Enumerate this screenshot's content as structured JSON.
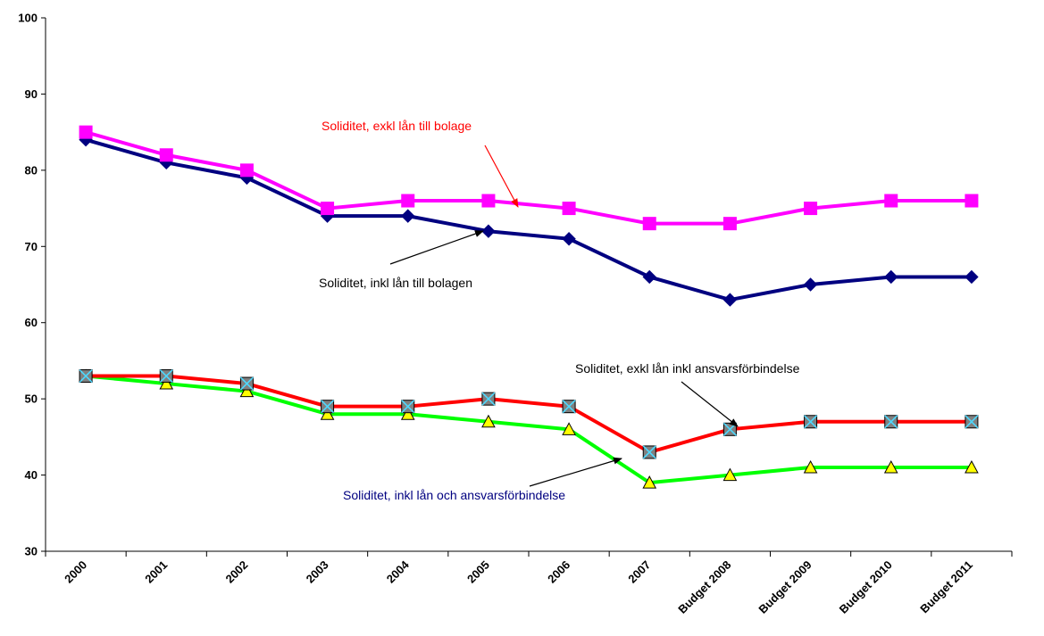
{
  "chart_data": {
    "type": "line",
    "title": "",
    "xlabel": "",
    "ylabel": "",
    "ylim": [
      30,
      100
    ],
    "yticks": [
      30,
      40,
      50,
      60,
      70,
      80,
      90,
      100
    ],
    "grid": false,
    "legend": "none",
    "categories": [
      "2000",
      "2001",
      "2002",
      "2003",
      "2004",
      "2005",
      "2006",
      "2007",
      "Budget 2008",
      "Budget 2009",
      "Budget 2010",
      "Budget 2011"
    ],
    "series": [
      {
        "name": "Soliditet, exkl lån till bolage",
        "color": "#ff00ff",
        "marker": "square",
        "values": [
          85,
          82,
          80,
          75,
          76,
          76,
          75,
          73,
          73,
          75,
          76,
          76
        ]
      },
      {
        "name": "Soliditet, inkl lån till bolagen",
        "color": "#000080",
        "marker": "diamond",
        "values": [
          84,
          81,
          79,
          74,
          74,
          72,
          71,
          66,
          63,
          65,
          66,
          66
        ]
      },
      {
        "name": "Soliditet, exkl lån inkl ansvarsförbindelse",
        "color": "#ff0000",
        "marker": "square-x",
        "values": [
          53,
          53,
          52,
          49,
          49,
          50,
          49,
          43,
          46,
          47,
          47,
          47
        ]
      },
      {
        "name": "Soliditet, inkl lån och ansvarsförbindelse",
        "color": "#00ff00",
        "marker": "triangle",
        "values": [
          53,
          52,
          51,
          48,
          48,
          47,
          46,
          39,
          40,
          41,
          41,
          41
        ]
      }
    ],
    "annotations": [
      {
        "text": "Soliditet, exkl lån till bolage",
        "color": "#ff0000"
      },
      {
        "text": "Soliditet, inkl lån till bolagen",
        "color": "#000000"
      },
      {
        "text": "Soliditet, exkl lån inkl ansvarsförbindelse",
        "color": "#000000"
      },
      {
        "text": "Soliditet, inkl lån och ansvarsförbindelse",
        "color": "#000080"
      }
    ]
  }
}
